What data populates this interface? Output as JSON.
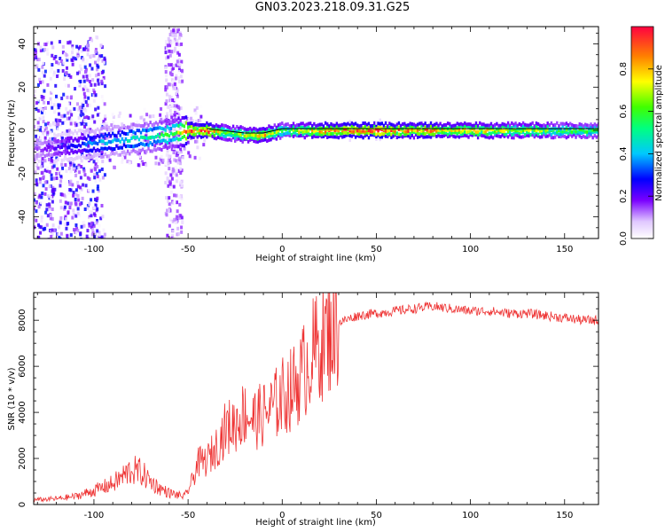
{
  "title": "GN03.2023.218.09.31.G25",
  "chart_data": [
    {
      "type": "heatmap",
      "xlabel": "Height of straight line (km)",
      "ylabel": "Frequency (Hz)",
      "xlim": [
        -132,
        168
      ],
      "ylim": [
        -50,
        48
      ],
      "xticks": [
        -100,
        -50,
        0,
        50,
        100,
        150
      ],
      "yticks": [
        -40,
        -20,
        0,
        20,
        40
      ],
      "colorbar": {
        "label": "Normalized spectral amplitude",
        "range": [
          0,
          1
        ],
        "ticks": [
          0.0,
          0.2,
          0.4,
          0.6,
          0.8
        ]
      },
      "ridge": {
        "x": [
          -132,
          -120,
          -110,
          -100,
          -90,
          -80,
          -70,
          -60,
          -50,
          -40,
          -30,
          -20,
          -10,
          0,
          20,
          50,
          100,
          168
        ],
        "frequency": [
          -9,
          -8,
          -7,
          -6,
          -5,
          -4,
          -3,
          -2,
          0,
          0,
          -1,
          -2,
          -2,
          0,
          0,
          0,
          0,
          0
        ],
        "amplitude": [
          0.12,
          0.2,
          0.25,
          0.35,
          0.4,
          0.45,
          0.5,
          0.55,
          0.85,
          0.9,
          0.6,
          0.7,
          0.8,
          0.6,
          0.85,
          0.9,
          0.75,
          0.55
        ]
      }
    },
    {
      "type": "line",
      "xlabel": "Height of straight line (km)",
      "ylabel": "SNR (10 * v/v)",
      "xlim": [
        -132,
        168
      ],
      "ylim": [
        0,
        9200
      ],
      "xticks": [
        -100,
        -50,
        0,
        50,
        100,
        150
      ],
      "yticks": [
        0,
        2000,
        4000,
        6000,
        8000
      ],
      "series": [
        {
          "color": "#ee3333",
          "x": [
            -132,
            -120,
            -110,
            -100,
            -95,
            -90,
            -85,
            -80,
            -75,
            -70,
            -65,
            -60,
            -55,
            -52,
            -50,
            -47,
            -45,
            -40,
            -35,
            -30,
            -25,
            -20,
            -15,
            -10,
            -5,
            0,
            5,
            10,
            15,
            20,
            25,
            30,
            40,
            50,
            60,
            70,
            80,
            90,
            100,
            110,
            120,
            130,
            140,
            150,
            160,
            168
          ],
          "y": [
            200,
            250,
            350,
            600,
            750,
            900,
            1200,
            1500,
            1400,
            1000,
            700,
            500,
            400,
            350,
            600,
            1200,
            1800,
            1900,
            2500,
            3300,
            3500,
            4000,
            3700,
            3900,
            4200,
            4700,
            5000,
            5600,
            6400,
            7000,
            7500,
            7900,
            8200,
            8300,
            8400,
            8500,
            8600,
            8500,
            8400,
            8400,
            8300,
            8300,
            8200,
            8100,
            8000,
            8000
          ]
        }
      ]
    }
  ]
}
